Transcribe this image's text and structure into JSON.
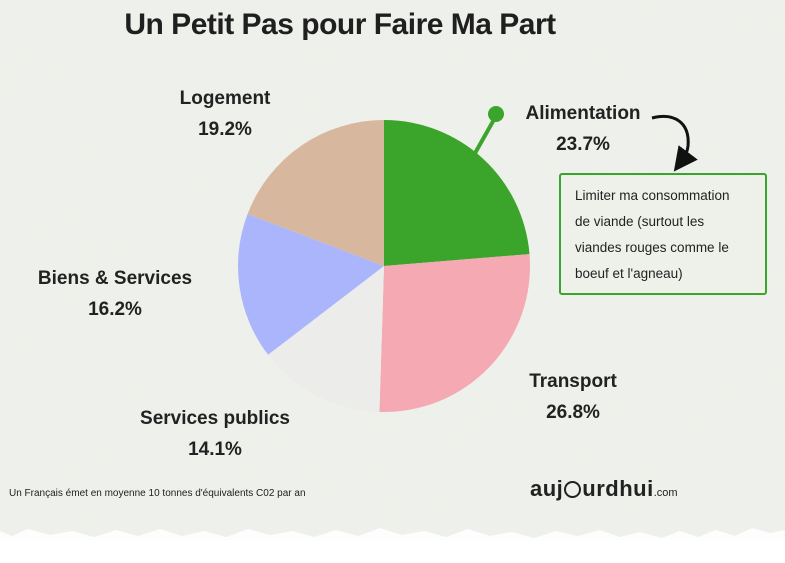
{
  "title": "Un Petit Pas pour Faire Ma Part",
  "chart_data": {
    "type": "pie",
    "slices": [
      {
        "name": "Alimentation",
        "value": 23.7,
        "label": "23.7%",
        "color": "#3aa52a"
      },
      {
        "name": "Transport",
        "value": 26.8,
        "label": "26.8%",
        "color": "#f5a9b2"
      },
      {
        "name": "Services publics",
        "value": 14.1,
        "label": "14.1%",
        "color": "#ececea"
      },
      {
        "name": "Biens & Services",
        "value": 16.2,
        "label": "16.2%",
        "color": "#aab5fb"
      },
      {
        "name": "Logement",
        "value": 19.2,
        "label": "19.2%",
        "color": "#d7b89e"
      }
    ],
    "highlight": "Alimentation"
  },
  "callout": {
    "text": "Limiter ma consommation de viande (surtout les viandes rouges comme le boeuf et l'agneau)",
    "lines": [
      "Limiter ma consommation",
      "de viande (surtout les",
      "viandes rouges comme le",
      "boeuf et l'agneau)"
    ]
  },
  "footnote": "Un Français émet en moyenne 10 tonnes d'équivalents C02 par an",
  "brand": {
    "name_pre": "auj",
    "name_post": "urdhui",
    "suffix": ".com"
  },
  "colors": {
    "accent": "#3aa52a",
    "background": "#f0f2ee"
  }
}
